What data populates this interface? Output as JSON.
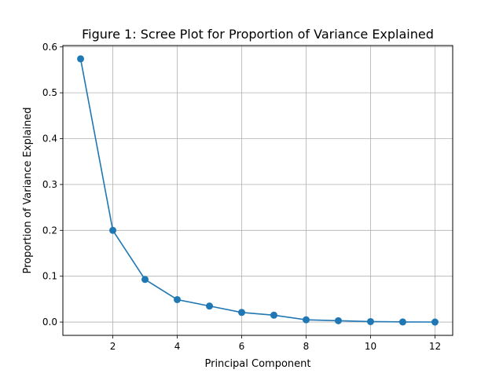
{
  "chart_data": {
    "type": "line",
    "title": "Figure 1: Scree Plot for Proportion of Variance Explained",
    "xlabel": "Principal Component",
    "ylabel": "Proportion of Variance Explained",
    "xlim": [
      0.45,
      12.55
    ],
    "ylim": [
      -0.029,
      0.603
    ],
    "xticks": [
      2,
      4,
      6,
      8,
      10,
      12
    ],
    "yticks": [
      0.0,
      0.1,
      0.2,
      0.3,
      0.4,
      0.5,
      0.6
    ],
    "xtick_labels": [
      "2",
      "4",
      "6",
      "8",
      "10",
      "12"
    ],
    "ytick_labels": [
      "0.0",
      "0.1",
      "0.2",
      "0.3",
      "0.4",
      "0.5",
      "0.6"
    ],
    "grid": true,
    "series": [
      {
        "color": "#1f77b4",
        "marker": "circle",
        "x": [
          1,
          2,
          3,
          4,
          5,
          6,
          7,
          8,
          9,
          10,
          11,
          12
        ],
        "y": [
          0.574,
          0.2,
          0.093,
          0.049,
          0.035,
          0.021,
          0.015,
          0.005,
          0.003,
          0.001,
          0.0003,
          0.0001
        ]
      }
    ]
  }
}
